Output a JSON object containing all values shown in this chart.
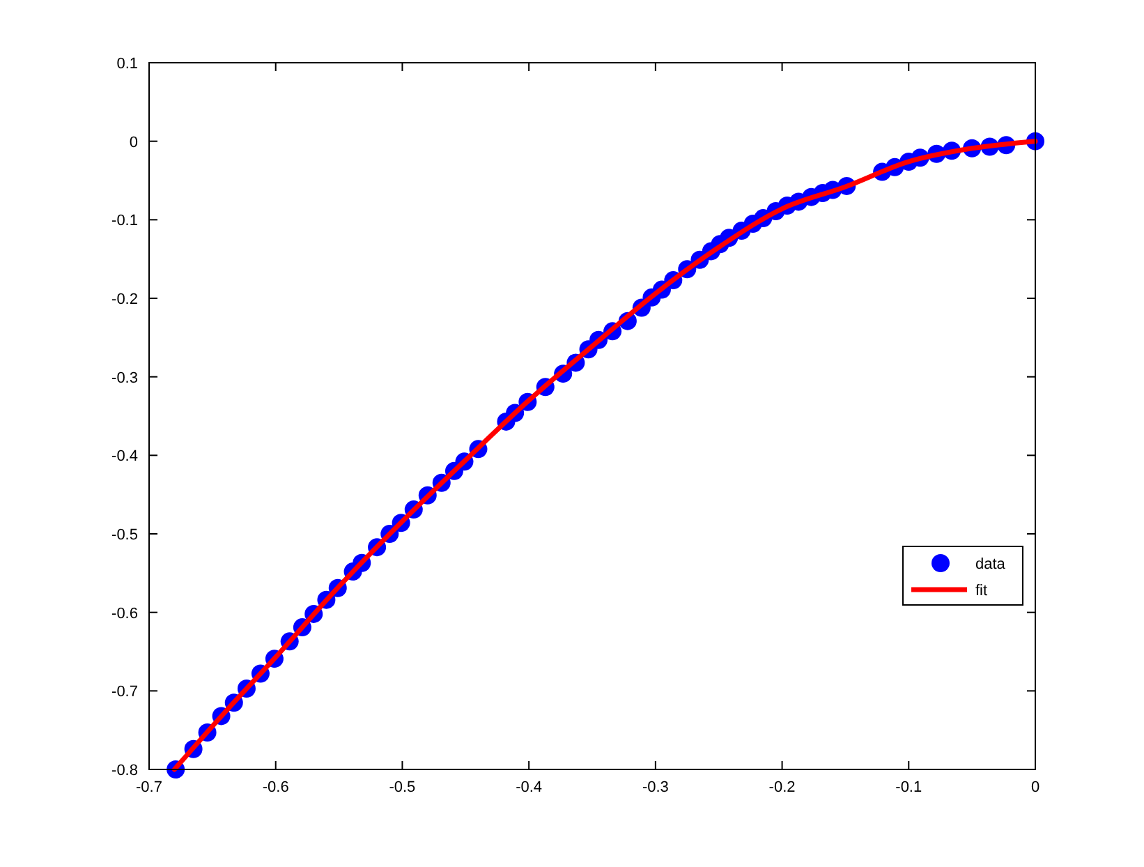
{
  "chart_data": {
    "type": "scatter",
    "xlim": [
      -0.7,
      0
    ],
    "ylim": [
      -0.8,
      0.1
    ],
    "xticks": [
      -0.7,
      -0.6,
      -0.5,
      -0.4,
      -0.3,
      -0.2,
      -0.1,
      0
    ],
    "yticks": [
      -0.8,
      -0.7,
      -0.6,
      -0.5,
      -0.4,
      -0.3,
      -0.2,
      -0.1,
      0,
      0.1
    ],
    "grid": false,
    "legend": "right",
    "series": [
      {
        "name": "data",
        "marker": "circle",
        "color": "#0000ff",
        "x": [
          -0.679,
          -0.665,
          -0.654,
          -0.643,
          -0.633,
          -0.623,
          -0.612,
          -0.601,
          -0.589,
          -0.579,
          -0.57,
          -0.56,
          -0.551,
          -0.539,
          -0.532,
          -0.52,
          -0.51,
          -0.501,
          -0.491,
          -0.48,
          -0.469,
          -0.459,
          -0.451,
          -0.44,
          -0.418,
          -0.411,
          -0.401,
          -0.387,
          -0.373,
          -0.363,
          -0.353,
          -0.345,
          -0.334,
          -0.322,
          -0.311,
          -0.303,
          -0.295,
          -0.286,
          -0.275,
          -0.265,
          -0.256,
          -0.249,
          -0.242,
          -0.232,
          -0.223,
          -0.215,
          -0.205,
          -0.196,
          -0.187,
          -0.177,
          -0.168,
          -0.16,
          -0.149,
          -0.121,
          -0.111,
          -0.1,
          -0.091,
          -0.078,
          -0.066,
          -0.05,
          -0.036,
          -0.023,
          0
        ],
        "values": [
          -0.8,
          -0.774,
          -0.753,
          -0.732,
          -0.715,
          -0.697,
          -0.678,
          -0.659,
          -0.637,
          -0.619,
          -0.602,
          -0.584,
          -0.569,
          -0.548,
          -0.537,
          -0.517,
          -0.5,
          -0.486,
          -0.469,
          -0.451,
          -0.435,
          -0.42,
          -0.408,
          -0.392,
          -0.357,
          -0.346,
          -0.332,
          -0.313,
          -0.296,
          -0.282,
          -0.265,
          -0.253,
          -0.242,
          -0.229,
          -0.212,
          -0.199,
          -0.189,
          -0.177,
          -0.163,
          -0.151,
          -0.14,
          -0.131,
          -0.123,
          -0.114,
          -0.105,
          -0.098,
          -0.089,
          -0.082,
          -0.077,
          -0.071,
          -0.066,
          -0.062,
          -0.057,
          -0.039,
          -0.033,
          -0.026,
          -0.021,
          -0.016,
          -0.012,
          -0.009,
          -0.007,
          -0.005,
          0
        ]
      },
      {
        "name": "fit",
        "type": "line",
        "color": "#ff0000",
        "line_style": "solid",
        "x": [
          -0.68,
          -0.64,
          -0.6,
          -0.55,
          -0.5,
          -0.45,
          -0.4,
          -0.35,
          -0.3,
          -0.25,
          -0.2,
          -0.15,
          -0.1,
          -0.05,
          0
        ],
        "values": [
          -0.8,
          -0.727,
          -0.657,
          -0.567,
          -0.484,
          -0.406,
          -0.33,
          -0.261,
          -0.194,
          -0.135,
          -0.086,
          -0.058,
          -0.026,
          -0.009,
          0
        ]
      }
    ]
  }
}
